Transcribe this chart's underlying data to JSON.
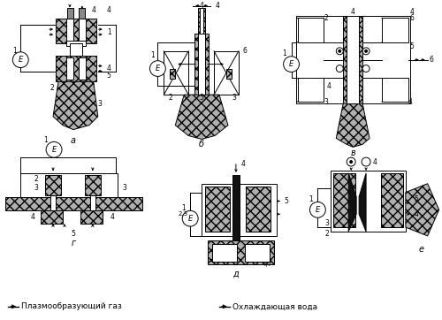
{
  "background_color": "#ffffff",
  "legend_gas_text": "Плазмообразующий газ",
  "legend_water_text": "Охлаждающая вода",
  "label_a": "а",
  "label_b": "б",
  "label_v": "в",
  "label_g": "г",
  "label_d": "д",
  "label_e": "е"
}
